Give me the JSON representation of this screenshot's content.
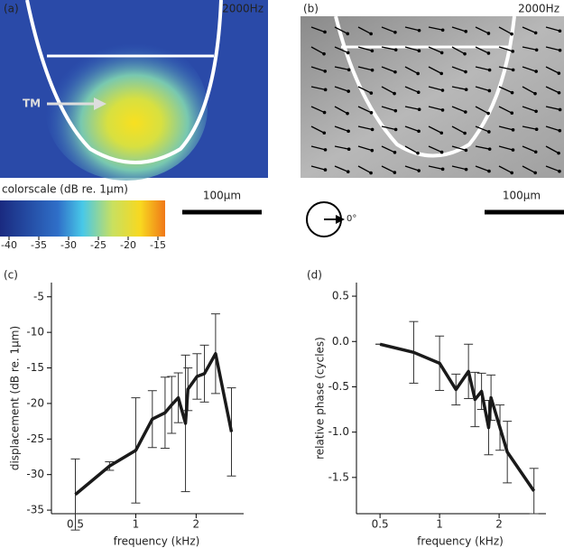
{
  "panels": {
    "a": {
      "label": "(a)",
      "freq": "2000Hz",
      "tm": "TM",
      "colorbar_title": "colorscale (dB re. 1µm)",
      "colorbar_ticks": [
        -40,
        -35,
        -30,
        -25,
        -20,
        -15
      ],
      "scale": "100µm"
    },
    "b": {
      "label": "(b)",
      "freq": "2000Hz",
      "scale": "100µm",
      "angle": "0°"
    }
  },
  "chart_data": [
    {
      "type": "line",
      "label": "(c)",
      "x_label": "frequency (kHz)",
      "y_label": "displacement (dB re. 1µm)",
      "x": [
        0.5,
        0.74,
        1.0,
        1.21,
        1.4,
        1.51,
        1.63,
        1.77,
        1.82,
        2.02,
        2.2,
        2.5,
        3.0
      ],
      "series": [
        {
          "color": "#1a1a1a",
          "values": [
            -32.8,
            -28.8,
            -26.6,
            -22.2,
            -21.3,
            -20.2,
            -19.2,
            -22.8,
            -18.0,
            -16.2,
            -15.8,
            -13.0,
            -24.0
          ],
          "errors": [
            5,
            0.6,
            7.4,
            4,
            5,
            4,
            3.5,
            9.6,
            3,
            3.2,
            4,
            5.6,
            6.2
          ]
        }
      ],
      "log_x": true,
      "xlim": [
        0.38,
        3.45
      ],
      "xticks": [
        0.5,
        1,
        2
      ],
      "ylim": [
        -35.5,
        -3
      ],
      "yticks": [
        -35,
        -30,
        -25,
        -20,
        -15,
        -10,
        -5
      ]
    },
    {
      "type": "line",
      "label": "(d)",
      "x_label": "frequency (kHz)",
      "y_label": "relative phase (cycles)",
      "x": [
        0.5,
        0.74,
        1.0,
        1.21,
        1.4,
        1.51,
        1.63,
        1.77,
        1.82,
        2.02,
        2.2,
        3.0
      ],
      "series": [
        {
          "color": "#1a1a1a",
          "values": [
            -0.03,
            -0.12,
            -0.24,
            -0.53,
            -0.33,
            -0.64,
            -0.55,
            -0.95,
            -0.62,
            -0.95,
            -1.22,
            -1.65
          ],
          "errors": [
            0,
            0.34,
            0.3,
            0.17,
            0.3,
            0.3,
            0.2,
            0.3,
            0.25,
            0.25,
            0.34,
            0.25
          ]
        }
      ],
      "log_x": true,
      "xlim": [
        0.38,
        3.45
      ],
      "xticks": [
        0.5,
        1,
        2
      ],
      "ylim": [
        -1.9,
        0.65
      ],
      "yticks": [
        {
          "value": -1.5,
          "label": "-1.5"
        },
        {
          "value": -1,
          "label": "-1.0"
        },
        {
          "value": -0.5,
          "label": "-0.5"
        },
        {
          "value": 0,
          "label": "0.0"
        },
        {
          "value": 0.5,
          "label": "0.5"
        }
      ]
    }
  ]
}
